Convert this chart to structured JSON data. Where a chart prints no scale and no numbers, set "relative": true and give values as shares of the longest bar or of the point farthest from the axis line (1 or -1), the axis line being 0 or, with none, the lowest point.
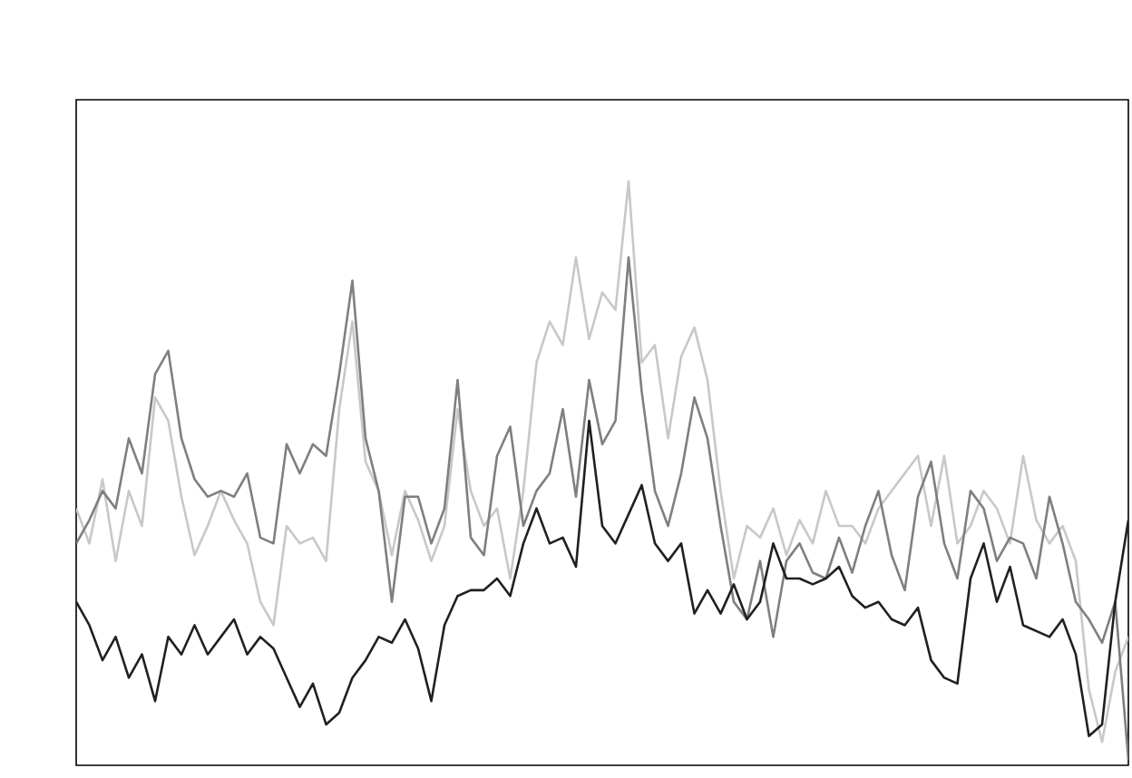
{
  "chart_data": {
    "type": "line",
    "relative": true,
    "line_style": "solid",
    "marker": "none",
    "categories": [
      null,
      null,
      null,
      null,
      null,
      null,
      null,
      null,
      null,
      null,
      null,
      null,
      null,
      null,
      null,
      null,
      null,
      null,
      null,
      null,
      null,
      null,
      null,
      null,
      null,
      null,
      null,
      null,
      null,
      null,
      null,
      null,
      null,
      null,
      null,
      null,
      null,
      null,
      null,
      null,
      null,
      null,
      null,
      null,
      null,
      null,
      null,
      null,
      null,
      null,
      null,
      null,
      null,
      null,
      null,
      null,
      null,
      null,
      null,
      null,
      null,
      null,
      null,
      null,
      null,
      null,
      null,
      null,
      null,
      null,
      null,
      null,
      null,
      null,
      null,
      null,
      null,
      null,
      null,
      null,
      null
    ],
    "series": [
      {
        "color": "#c8c8c8",
        "values": [
          0.44,
          0.38,
          0.49,
          0.35,
          0.47,
          0.41,
          0.63,
          0.59,
          0.46,
          0.36,
          0.41,
          0.47,
          0.42,
          0.38,
          0.28,
          0.24,
          0.41,
          0.38,
          0.39,
          0.35,
          0.61,
          0.76,
          0.52,
          0.47,
          0.36,
          0.47,
          0.42,
          0.35,
          0.41,
          0.61,
          0.47,
          0.41,
          0.44,
          0.32,
          0.47,
          0.69,
          0.76,
          0.72,
          0.87,
          0.73,
          0.81,
          0.78,
          1,
          0.69,
          0.72,
          0.56,
          0.7,
          0.75,
          0.66,
          0.47,
          0.32,
          0.41,
          0.39,
          0.44,
          0.36,
          0.42,
          0.38,
          0.47,
          0.41,
          0.41,
          0.38,
          0.44,
          0.47,
          0.5,
          0.53,
          0.41,
          0.53,
          0.38,
          0.41,
          0.47,
          0.44,
          0.38,
          0.53,
          0.42,
          0.38,
          0.41,
          0.35,
          0.13,
          0.04,
          0.16,
          0.22
        ]
      },
      {
        "color": "#7f7f7f",
        "values": [
          0.38,
          0.42,
          0.47,
          0.44,
          0.56,
          0.5,
          0.67,
          0.71,
          0.56,
          0.49,
          0.46,
          0.47,
          0.46,
          0.5,
          0.39,
          0.38,
          0.55,
          0.5,
          0.55,
          0.53,
          0.67,
          0.83,
          0.56,
          0.47,
          0.28,
          0.46,
          0.46,
          0.38,
          0.44,
          0.66,
          0.39,
          0.36,
          0.53,
          0.58,
          0.41,
          0.47,
          0.5,
          0.61,
          0.46,
          0.66,
          0.55,
          0.59,
          0.87,
          0.64,
          0.47,
          0.41,
          0.5,
          0.63,
          0.56,
          0.41,
          0.28,
          0.25,
          0.35,
          0.22,
          0.35,
          0.38,
          0.33,
          0.32,
          0.39,
          0.33,
          0.41,
          0.47,
          0.36,
          0.3,
          0.46,
          0.52,
          0.38,
          0.32,
          0.47,
          0.44,
          0.35,
          0.39,
          0.38,
          0.32,
          0.46,
          0.38,
          0.28,
          0.25,
          0.21,
          0.28,
          0.01
        ]
      },
      {
        "color": "#231f20",
        "values": [
          0.28,
          0.24,
          0.18,
          0.22,
          0.15,
          0.19,
          0.11,
          0.22,
          0.19,
          0.24,
          0.19,
          0.22,
          0.25,
          0.19,
          0.22,
          0.2,
          0.15,
          0.1,
          0.14,
          0.07,
          0.09,
          0.15,
          0.18,
          0.22,
          0.21,
          0.25,
          0.2,
          0.11,
          0.24,
          0.29,
          0.3,
          0.3,
          0.32,
          0.29,
          0.38,
          0.44,
          0.38,
          0.39,
          0.34,
          0.59,
          0.41,
          0.38,
          0.43,
          0.48,
          0.38,
          0.35,
          0.38,
          0.26,
          0.3,
          0.26,
          0.31,
          0.25,
          0.28,
          0.38,
          0.32,
          0.32,
          0.31,
          0.32,
          0.34,
          0.29,
          0.27,
          0.28,
          0.25,
          0.24,
          0.27,
          0.18,
          0.15,
          0.14,
          0.32,
          0.38,
          0.28,
          0.34,
          0.24,
          0.23,
          0.22,
          0.25,
          0.19,
          0.05,
          0.07,
          0.28,
          0.42
        ]
      }
    ]
  }
}
